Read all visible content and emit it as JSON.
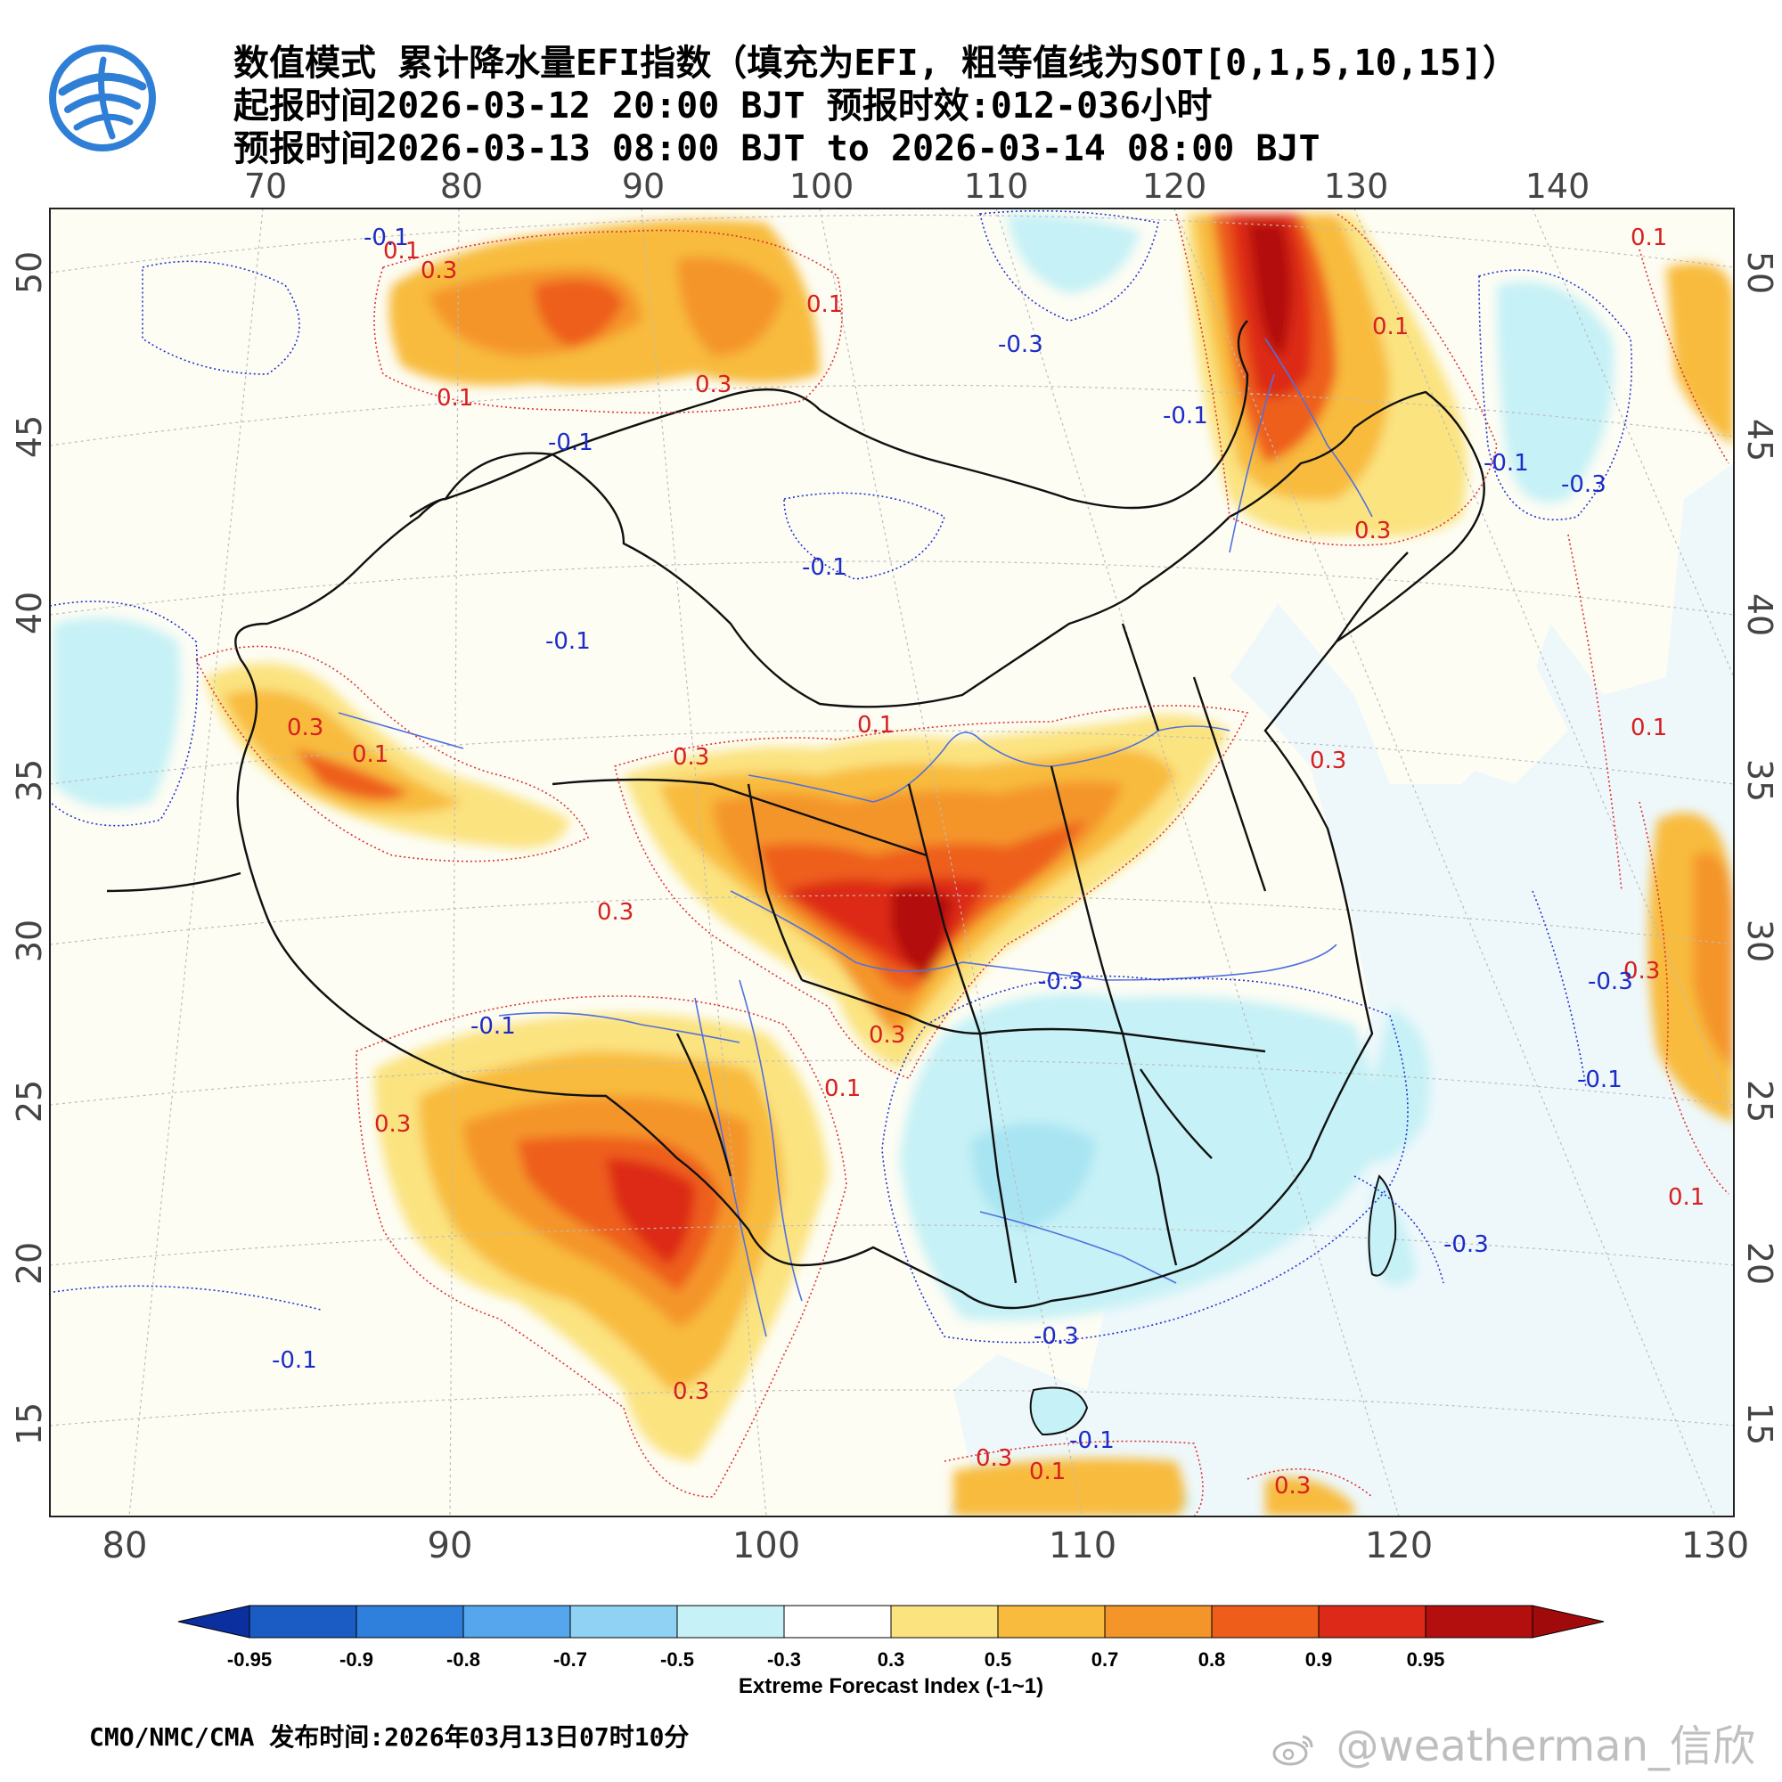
{
  "header": {
    "title_line1": "数值模式 累计降水量EFI指数（填充为EFI, 粗等值线为SOT[0,1,5,10,15]）",
    "title_line2": "起报时间2026-03-12 20:00 BJT 预报时效:012-036小时",
    "title_line3": "预报时间2026-03-13 08:00 BJT to 2026-03-14 08:00 BJT"
  },
  "map": {
    "top_lon_ticks": [
      "70",
      "80",
      "90",
      "100",
      "110",
      "120",
      "130",
      "140"
    ],
    "bottom_lon_ticks": [
      "80",
      "90",
      "100",
      "110",
      "120",
      "130"
    ],
    "left_lat_ticks": [
      "50",
      "45",
      "40",
      "35",
      "30",
      "25",
      "20",
      "15"
    ],
    "right_lat_ticks": [
      "50",
      "45",
      "40",
      "35",
      "30",
      "25",
      "20",
      "15"
    ],
    "contour_labels_red": [
      "0.1",
      "0.3",
      "0.1",
      "0.3",
      "0.1",
      "0.3",
      "0.1",
      "0.3",
      "0.1",
      "0.3",
      "0.3",
      "0.3",
      "0.1",
      "0.3",
      "0.3",
      "0.1",
      "0.3",
      "0.1",
      "0.3",
      "0.1",
      "0.3",
      "0.1",
      "0.3",
      "0.1"
    ],
    "contour_labels_blue": [
      "-0.1",
      "-0.3",
      "-0.1",
      "-0.1",
      "-0.1",
      "-0.1",
      "-0.3",
      "-0.1",
      "-0.3",
      "-0.1",
      "-0.3",
      "-0.1",
      "-0.3",
      "-0.1",
      "-0.3",
      "-0.1"
    ],
    "colors": {
      "ocean": "#eef8fb",
      "land": "#fdfdf4",
      "low_light_blue": "#c6f1f6",
      "low_mid_blue": "#a8e4f2",
      "yellow": "#fbe380",
      "light_orange": "#f8bb3e",
      "orange": "#f4952a",
      "red_orange": "#ee5e1a",
      "red": "#dd2a18",
      "dark_red": "#b40f0f",
      "contour_red": "#e03030",
      "contour_blue": "#2030d0",
      "river": "#5070e0",
      "border": "#111111"
    }
  },
  "colorbar": {
    "labels": [
      "-0.95",
      "-0.9",
      "-0.8",
      "-0.7",
      "-0.5",
      "-0.3",
      "0.3",
      "0.5",
      "0.7",
      "0.8",
      "0.9",
      "0.95"
    ],
    "colors": [
      "#1a5bc4",
      "#2f7fdc",
      "#55a6ec",
      "#8fd2f3",
      "#c6f1f6",
      "#ffffff",
      "#fbe380",
      "#f8bb3e",
      "#f4952a",
      "#ee5e1a",
      "#dd2a18",
      "#b40f0f"
    ],
    "end_low_color": "#0c2fa0",
    "end_high_color": "#a00a0a",
    "title": "Extreme Forecast Index (-1~1)"
  },
  "footer": {
    "text": "CMO/NMC/CMA 发布时间:2026年03月13日07时10分",
    "watermark": "@weatherman_信欣",
    "watermark_icon": "weibo-icon",
    "logo_icon": "cma-logo-icon"
  }
}
